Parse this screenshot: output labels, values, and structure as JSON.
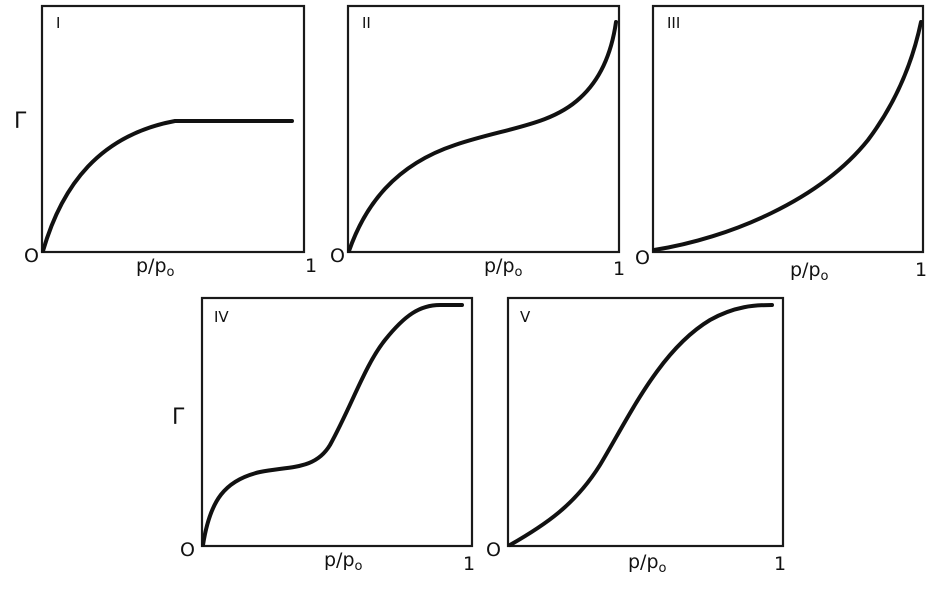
{
  "y_symbol": "Γ",
  "x_label": {
    "main": "p/p",
    "sub": "o"
  },
  "origin_label": "O",
  "x_end_label": "1",
  "panels": [
    {
      "id": "I",
      "roman": "I",
      "shows_y_symbol": true
    },
    {
      "id": "II",
      "roman": "II",
      "shows_y_symbol": false
    },
    {
      "id": "III",
      "roman": "III",
      "shows_y_symbol": false
    },
    {
      "id": "IV",
      "roman": "IV",
      "shows_y_symbol": true
    },
    {
      "id": "V",
      "roman": "V",
      "shows_y_symbol": false
    }
  ]
}
